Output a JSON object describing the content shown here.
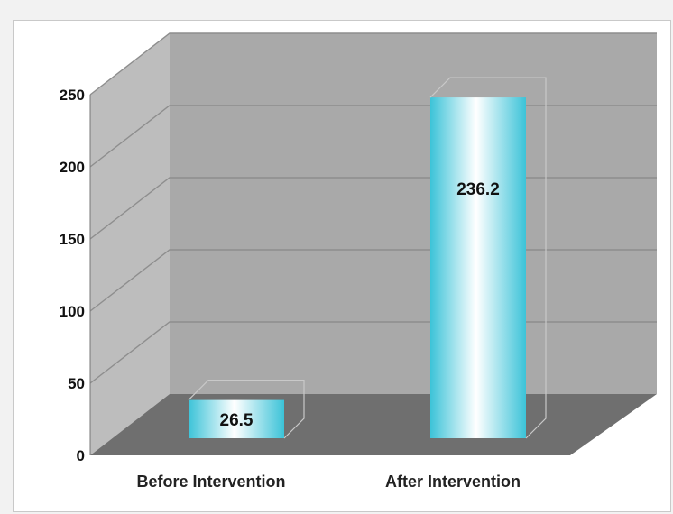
{
  "chart_data": {
    "type": "bar",
    "categories": [
      "Before Intervention",
      "After Intervention"
    ],
    "values": [
      26.5,
      236.2
    ],
    "data_labels": [
      "26.5",
      "236.2"
    ],
    "yticks": [
      "0",
      "50",
      "100",
      "150",
      "200",
      "250"
    ],
    "ylim": [
      0,
      250
    ],
    "grid": true,
    "three_d": true,
    "colors": {
      "bar_edge": "#3cc3d8",
      "bar_mid": "#ffffff",
      "wall": "#a9a9a9",
      "side_wall": "#bdbdbd",
      "floor": "#6f6f6f",
      "grid_line": "#8e8e8e"
    }
  }
}
